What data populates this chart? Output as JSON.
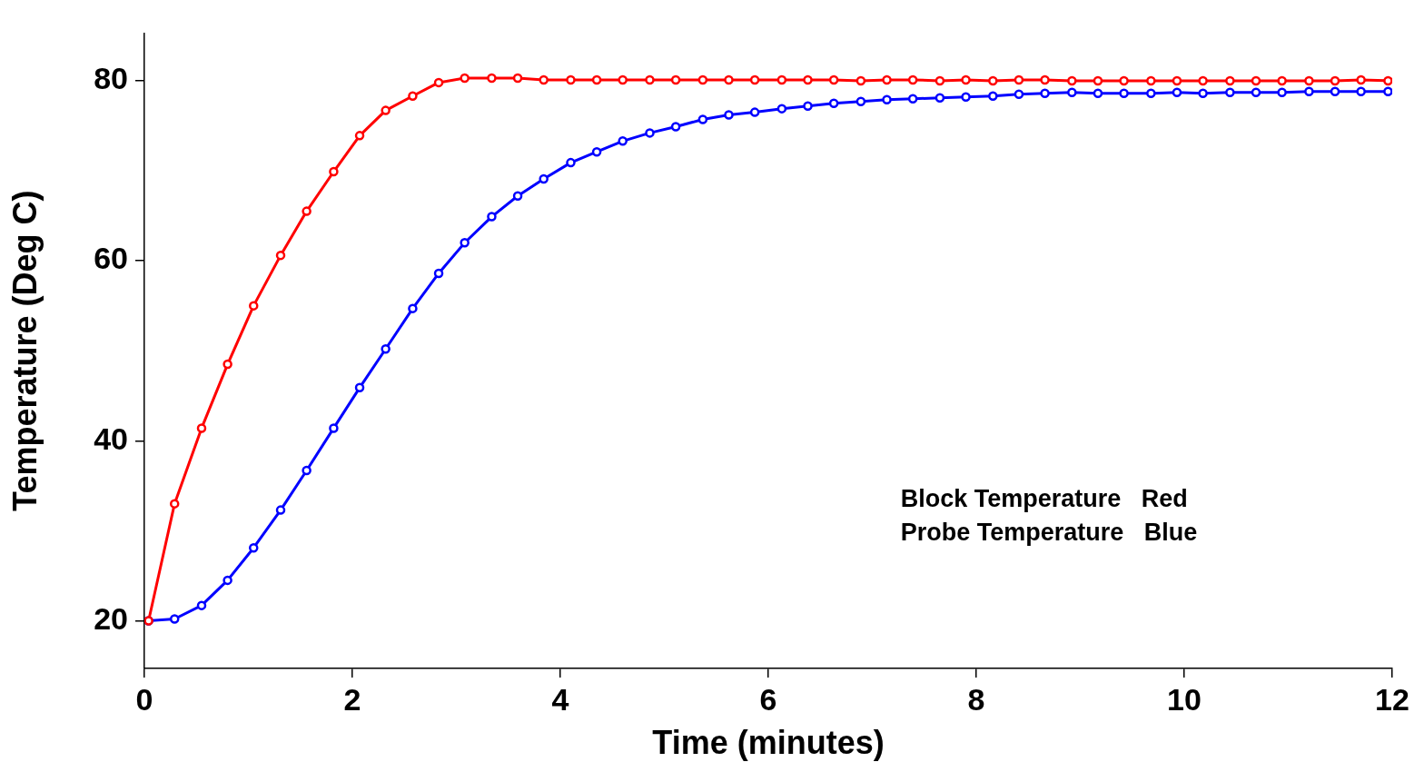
{
  "chart_data": {
    "type": "line",
    "xlabel": "Time (minutes)",
    "ylabel": "Temperature (Deg C)",
    "x": [
      0.04,
      0.29,
      0.55,
      0.8,
      1.05,
      1.31,
      1.56,
      1.82,
      2.07,
      2.32,
      2.58,
      2.83,
      3.08,
      3.34,
      3.59,
      3.84,
      4.1,
      4.35,
      4.6,
      4.86,
      5.11,
      5.37,
      5.62,
      5.87,
      6.13,
      6.38,
      6.63,
      6.89,
      7.14,
      7.39,
      7.65,
      7.9,
      8.16,
      8.41,
      8.66,
      8.92,
      9.17,
      9.42,
      9.68,
      9.93,
      10.18,
      10.44,
      10.69,
      10.94,
      11.2,
      11.45,
      11.7,
      11.96
    ],
    "series": [
      {
        "color": "#ff0000",
        "values": [
          20,
          33,
          41.4,
          48.5,
          55,
          60.6,
          65.5,
          69.9,
          73.9,
          76.7,
          78.3,
          79.8,
          80.3,
          80.3,
          80.3,
          80.1,
          80.1,
          80.1,
          80.1,
          80.1,
          80.1,
          80.1,
          80.1,
          80.1,
          80.1,
          80.1,
          80.1,
          80,
          80.1,
          80.1,
          80,
          80.1,
          80,
          80.1,
          80.1,
          80,
          80,
          80,
          80,
          80,
          80,
          80,
          80,
          80,
          80,
          80,
          80.1,
          80
        ]
      },
      {
        "color": "#0000ff",
        "values": [
          20,
          20.2,
          21.7,
          24.5,
          28.1,
          32.3,
          36.7,
          41.4,
          45.9,
          50.2,
          54.7,
          58.6,
          62,
          64.9,
          67.2,
          69.1,
          70.9,
          72.1,
          73.3,
          74.2,
          74.9,
          75.7,
          76.2,
          76.5,
          76.9,
          77.2,
          77.5,
          77.7,
          77.9,
          78,
          78.1,
          78.2,
          78.3,
          78.5,
          78.6,
          78.7,
          78.6,
          78.6,
          78.6,
          78.7,
          78.6,
          78.7,
          78.7,
          78.7,
          78.8,
          78.8,
          78.8,
          78.8
        ]
      }
    ],
    "xlim": [
      0,
      12
    ],
    "xticks": [
      0,
      2,
      4,
      6,
      8,
      10,
      12
    ],
    "ylim": [
      14.7,
      85.3
    ],
    "yticks": [
      20,
      40,
      60,
      80
    ],
    "grid": false,
    "legend": false,
    "marker": "circle",
    "line_style": "solid",
    "annotations": [
      "Block Temperature   Red",
      "Probe Temperature   Blue"
    ]
  }
}
